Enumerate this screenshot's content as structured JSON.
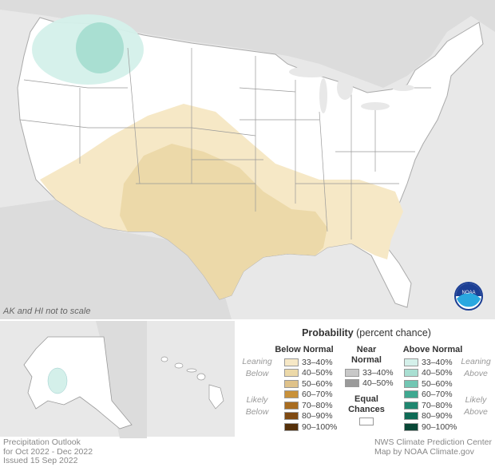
{
  "map": {
    "scale_note": "AK and HI not to scale",
    "logo_text": "NOAA"
  },
  "legend": {
    "title_bold": "Probability",
    "title_rest": " (percent chance)",
    "below_head": "Below Normal",
    "near_head_1": "Near",
    "near_head_2": "Normal",
    "above_head": "Above Normal",
    "leaning_below_1": "Leaning",
    "leaning_below_2": "Below",
    "likely_below_1": "Likely",
    "likely_below_2": "Below",
    "leaning_above_1": "Leaning",
    "leaning_above_2": "Above",
    "likely_above_1": "Likely",
    "likely_above_2": "Above",
    "below": [
      {
        "label": "33–40%",
        "color": "#f6e8c6"
      },
      {
        "label": "40–50%",
        "color": "#ecd9a9"
      },
      {
        "label": "50–60%",
        "color": "#dfc28a"
      },
      {
        "label": "60–70%",
        "color": "#c8913a"
      },
      {
        "label": "70–80%",
        "color": "#a86c20"
      },
      {
        "label": "80–90%",
        "color": "#7f4a12"
      },
      {
        "label": "90–100%",
        "color": "#55300a"
      }
    ],
    "near": [
      {
        "label": "33–40%",
        "color": "#c8c8c8"
      },
      {
        "label": "40–50%",
        "color": "#9a9a9a"
      }
    ],
    "equal_1": "Equal",
    "equal_2": "Chances",
    "above": [
      {
        "label": "33–40%",
        "color": "#d4f0ea"
      },
      {
        "label": "40–50%",
        "color": "#a9dfd2"
      },
      {
        "label": "50–60%",
        "color": "#72c6b3"
      },
      {
        "label": "60–70%",
        "color": "#3fa890"
      },
      {
        "label": "70–80%",
        "color": "#1f866f"
      },
      {
        "label": "80–90%",
        "color": "#0e6a55"
      },
      {
        "label": "90–100%",
        "color": "#084736"
      }
    ]
  },
  "footer": {
    "left_1": "Precipitation Outlook",
    "left_2": "for Oct 2022 - Dec 2022",
    "left_3": "Issued 15 Sep 2022",
    "right_1": "NWS Climate Prediction Center",
    "right_2": "Map by NOAA Climate.gov"
  }
}
